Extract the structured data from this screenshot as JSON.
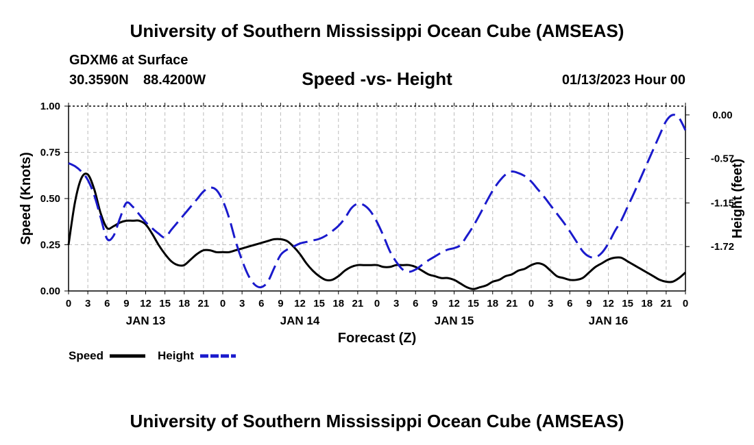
{
  "page_title": "University of Southern Mississippi Ocean Cube (AMSEAS)",
  "footer_title": "University of Southern Mississippi Ocean Cube (AMSEAS)",
  "station": {
    "name": "GDXM6 at Surface",
    "lat": "30.3590N",
    "lon": "88.4200W",
    "datetime": "01/13/2023 Hour 00"
  },
  "colors": {
    "speed": "#000000",
    "height": "#1a1acc",
    "grid": "#bbbbbb"
  },
  "chart_data": {
    "type": "line",
    "title": "Speed -vs- Height",
    "xlabel": "Forecast (Z)",
    "ylabel": "Speed (Knots)",
    "y2label": "Height (feet)",
    "xlim": [
      0,
      96
    ],
    "ylim": [
      0,
      1.0
    ],
    "y2lim": [
      -2.3,
      0.115
    ],
    "x_ticks": [
      0,
      3,
      6,
      9,
      12,
      15,
      18,
      21,
      24,
      27,
      30,
      33,
      36,
      39,
      42,
      45,
      48,
      51,
      54,
      57,
      60,
      63,
      66,
      69,
      72,
      75,
      78,
      81,
      84,
      87,
      90,
      93,
      96
    ],
    "x_tick_labels": [
      "0",
      "3",
      "6",
      "9",
      "12",
      "15",
      "18",
      "21",
      "0",
      "3",
      "6",
      "9",
      "12",
      "15",
      "18",
      "21",
      "0",
      "3",
      "6",
      "9",
      "12",
      "15",
      "18",
      "21",
      "0",
      "3",
      "6",
      "9",
      "12",
      "15",
      "18",
      "21",
      "0"
    ],
    "day_labels": [
      {
        "x": 12,
        "label": "JAN 13"
      },
      {
        "x": 36,
        "label": "JAN 14"
      },
      {
        "x": 60,
        "label": "JAN 15"
      },
      {
        "x": 84,
        "label": "JAN 16"
      }
    ],
    "y_ticks": [
      0,
      0.25,
      0.5,
      0.75,
      1.0
    ],
    "y_tick_labels": [
      "0.00",
      "0.25",
      "0.50",
      "0.75",
      "1.00"
    ],
    "y2_ticks": [
      0.0,
      -0.57,
      -1.15,
      -1.72
    ],
    "y2_tick_labels": [
      "0.00",
      "-0.57",
      "-1.15",
      "-1.72"
    ],
    "series": [
      {
        "name": "Speed",
        "axis": "left",
        "style": "solid",
        "x": [
          0,
          1,
          2,
          3,
          4,
          5,
          6,
          7,
          8,
          9,
          10,
          11,
          12,
          13,
          14,
          15,
          16,
          17,
          18,
          19,
          20,
          21,
          22,
          23,
          24,
          25,
          26,
          27,
          28,
          29,
          30,
          31,
          32,
          33,
          34,
          35,
          36,
          37,
          38,
          39,
          40,
          41,
          42,
          43,
          44,
          45,
          46,
          47,
          48,
          49,
          50,
          51,
          52,
          53,
          54,
          55,
          56,
          57,
          58,
          59,
          60,
          61,
          62,
          63,
          64,
          65,
          66,
          67,
          68,
          69,
          70,
          71,
          72,
          73,
          74,
          75,
          76,
          77,
          78,
          79,
          80,
          81,
          82,
          83,
          84,
          85,
          86,
          87,
          88,
          89,
          90,
          91,
          92,
          93,
          94,
          95,
          96
        ],
        "values": [
          0.25,
          0.48,
          0.61,
          0.63,
          0.55,
          0.42,
          0.34,
          0.35,
          0.37,
          0.38,
          0.38,
          0.38,
          0.36,
          0.31,
          0.25,
          0.2,
          0.16,
          0.14,
          0.14,
          0.17,
          0.2,
          0.22,
          0.22,
          0.21,
          0.21,
          0.21,
          0.22,
          0.23,
          0.24,
          0.25,
          0.26,
          0.27,
          0.28,
          0.28,
          0.27,
          0.24,
          0.2,
          0.15,
          0.11,
          0.08,
          0.06,
          0.06,
          0.08,
          0.11,
          0.13,
          0.14,
          0.14,
          0.14,
          0.14,
          0.13,
          0.13,
          0.14,
          0.14,
          0.14,
          0.13,
          0.11,
          0.09,
          0.08,
          0.07,
          0.07,
          0.06,
          0.04,
          0.02,
          0.01,
          0.02,
          0.03,
          0.05,
          0.06,
          0.08,
          0.09,
          0.11,
          0.12,
          0.14,
          0.15,
          0.14,
          0.11,
          0.08,
          0.07,
          0.06,
          0.06,
          0.07,
          0.1,
          0.13,
          0.15,
          0.17,
          0.18,
          0.18,
          0.16,
          0.14,
          0.12,
          0.1,
          0.08,
          0.06,
          0.05,
          0.05,
          0.07,
          0.1
        ]
      },
      {
        "name": "Height",
        "axis": "right",
        "style": "dashed",
        "x": [
          0,
          1,
          2,
          3,
          4,
          5,
          6,
          7,
          8,
          9,
          10,
          11,
          12,
          13,
          14,
          15,
          16,
          17,
          18,
          19,
          20,
          21,
          22,
          23,
          24,
          25,
          26,
          27,
          28,
          29,
          30,
          31,
          32,
          33,
          34,
          35,
          36,
          37,
          38,
          39,
          40,
          41,
          42,
          43,
          44,
          45,
          46,
          47,
          48,
          49,
          50,
          51,
          52,
          53,
          54,
          55,
          56,
          57,
          58,
          59,
          60,
          61,
          62,
          63,
          64,
          65,
          66,
          67,
          68,
          69,
          70,
          71,
          72,
          73,
          74,
          75,
          76,
          77,
          78,
          79,
          80,
          81,
          82,
          83,
          84,
          85,
          86,
          87,
          88,
          89,
          90,
          91,
          92,
          93,
          94,
          95,
          96
        ],
        "values": [
          -0.63,
          -0.67,
          -0.74,
          -0.85,
          -1.05,
          -1.34,
          -1.62,
          -1.58,
          -1.35,
          -1.15,
          -1.2,
          -1.3,
          -1.4,
          -1.48,
          -1.55,
          -1.6,
          -1.5,
          -1.4,
          -1.3,
          -1.2,
          -1.1,
          -1.0,
          -0.95,
          -0.98,
          -1.12,
          -1.35,
          -1.65,
          -1.9,
          -2.1,
          -2.22,
          -2.25,
          -2.18,
          -2.0,
          -1.83,
          -1.76,
          -1.72,
          -1.68,
          -1.66,
          -1.64,
          -1.62,
          -1.58,
          -1.52,
          -1.45,
          -1.35,
          -1.22,
          -1.16,
          -1.18,
          -1.26,
          -1.4,
          -1.58,
          -1.78,
          -1.92,
          -2.02,
          -2.05,
          -2.02,
          -1.96,
          -1.9,
          -1.85,
          -1.8,
          -1.76,
          -1.74,
          -1.7,
          -1.58,
          -1.45,
          -1.3,
          -1.14,
          -0.99,
          -0.87,
          -0.78,
          -0.74,
          -0.76,
          -0.8,
          -0.87,
          -0.97,
          -1.07,
          -1.18,
          -1.29,
          -1.4,
          -1.52,
          -1.65,
          -1.78,
          -1.85,
          -1.86,
          -1.8,
          -1.68,
          -1.52,
          -1.38,
          -1.2,
          -1.02,
          -0.83,
          -0.64,
          -0.45,
          -0.26,
          -0.08,
          0.0,
          -0.04,
          -0.2
        ]
      }
    ],
    "legend": [
      {
        "label": "Speed",
        "style": "solid"
      },
      {
        "label": "Height",
        "style": "dashed"
      }
    ],
    "legend_position": "bottom-left",
    "grid": true
  }
}
